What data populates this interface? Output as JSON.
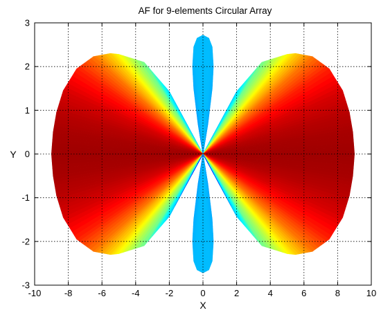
{
  "chart_data": {
    "type": "polar-pattern",
    "title": "AF for 9-elements Circular Array",
    "xlabel": "X",
    "ylabel": "Y",
    "xlim": [
      -10,
      10
    ],
    "ylim": [
      -3,
      3
    ],
    "xticks": [
      "-10",
      "-8",
      "-6",
      "-4",
      "-2",
      "0",
      "2",
      "4",
      "6",
      "8",
      "10"
    ],
    "yticks": [
      "3",
      "2",
      "1",
      "0",
      "-1",
      "-2",
      "-3"
    ],
    "grid": true,
    "series": [
      {
        "lobe": "right-main",
        "boundary": [
          [
            0,
            0
          ],
          [
            2,
            1.43
          ],
          [
            3.5,
            2.1
          ],
          [
            5,
            2.28
          ],
          [
            5.5,
            2.3
          ],
          [
            6.5,
            2.23
          ],
          [
            7.5,
            1.95
          ],
          [
            8.3,
            1.45
          ],
          [
            8.7,
            0.95
          ],
          [
            8.9,
            0.5
          ],
          [
            9,
            0
          ],
          [
            8.9,
            -0.5
          ],
          [
            8.7,
            -0.95
          ],
          [
            8.3,
            -1.45
          ],
          [
            7.5,
            -1.95
          ],
          [
            6.5,
            -2.23
          ],
          [
            5.5,
            -2.3
          ],
          [
            5,
            -2.28
          ],
          [
            3.5,
            -2.1
          ],
          [
            2,
            -1.43
          ],
          [
            0,
            0
          ]
        ]
      },
      {
        "lobe": "left-main",
        "boundary": [
          [
            0,
            0
          ],
          [
            -2,
            1.43
          ],
          [
            -3.5,
            2.1
          ],
          [
            -5,
            2.28
          ],
          [
            -5.5,
            2.3
          ],
          [
            -6.5,
            2.23
          ],
          [
            -7.5,
            1.95
          ],
          [
            -8.3,
            1.45
          ],
          [
            -8.7,
            0.95
          ],
          [
            -8.9,
            0.5
          ],
          [
            -9,
            0
          ],
          [
            -8.9,
            -0.5
          ],
          [
            -8.7,
            -0.95
          ],
          [
            -8.3,
            -1.45
          ],
          [
            -7.5,
            -1.95
          ],
          [
            -6.5,
            -2.23
          ],
          [
            -5.5,
            -2.3
          ],
          [
            -5,
            -2.28
          ],
          [
            -3.5,
            -2.1
          ],
          [
            -2,
            -1.43
          ],
          [
            0,
            0
          ]
        ]
      },
      {
        "lobe": "vertical",
        "boundary": [
          [
            0,
            0
          ],
          [
            0.3,
            0.7
          ],
          [
            0.55,
            1.5
          ],
          [
            0.62,
            2
          ],
          [
            0.55,
            2.45
          ],
          [
            0.35,
            2.65
          ],
          [
            0,
            2.72
          ],
          [
            -0.35,
            2.65
          ],
          [
            -0.55,
            2.45
          ],
          [
            -0.62,
            2
          ],
          [
            -0.55,
            1.5
          ],
          [
            -0.3,
            0.7
          ],
          [
            0,
            0
          ],
          [
            0.3,
            -0.7
          ],
          [
            0.55,
            -1.5
          ],
          [
            0.62,
            -2
          ],
          [
            0.55,
            -2.45
          ],
          [
            0.35,
            -2.65
          ],
          [
            0,
            -2.72
          ],
          [
            -0.35,
            -2.65
          ],
          [
            -0.55,
            -2.45
          ],
          [
            -0.62,
            -2
          ],
          [
            -0.55,
            -1.5
          ],
          [
            -0.3,
            -0.7
          ],
          [
            0,
            0
          ]
        ]
      }
    ]
  }
}
